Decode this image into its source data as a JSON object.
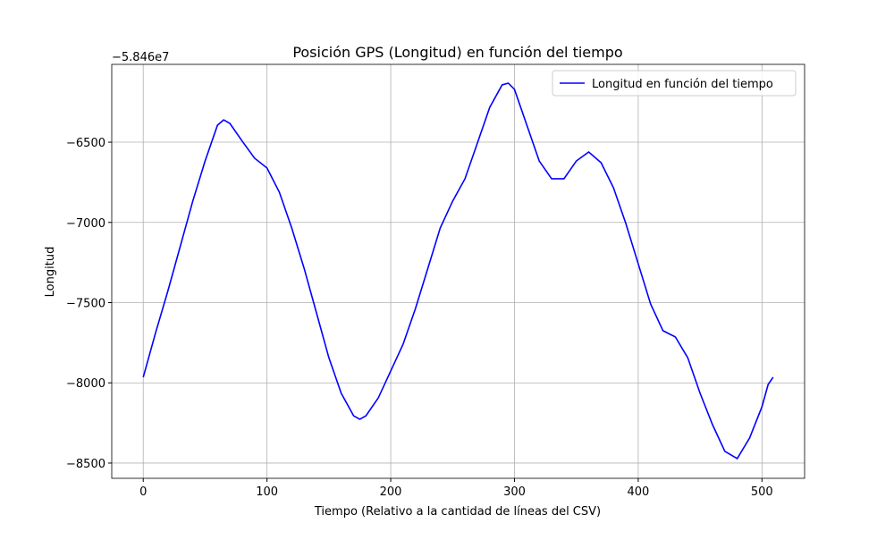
{
  "chart_data": {
    "type": "line",
    "title": "Posición GPS (Longitud) en función del tiempo",
    "x_label": "Tiempo (Relativo a la cantidad de líneas del CSV)",
    "y_label": "Longitud",
    "y_offset_label": "−5.846e7",
    "x": [
      0,
      10,
      20,
      30,
      40,
      50,
      60,
      65,
      70,
      80,
      90,
      100,
      110,
      120,
      130,
      140,
      150,
      160,
      170,
      175,
      180,
      190,
      200,
      210,
      220,
      230,
      240,
      250,
      260,
      270,
      280,
      290,
      295,
      300,
      310,
      320,
      330,
      340,
      350,
      360,
      370,
      380,
      390,
      400,
      410,
      420,
      430,
      440,
      450,
      460,
      470,
      480,
      490,
      500,
      505,
      509
    ],
    "series": [
      {
        "name": "Longitud en función del tiempo",
        "color": "#0000ff",
        "values": [
          -7965,
          -7687,
          -7425,
          -7147,
          -6868,
          -6617,
          -6394,
          -6361,
          -6383,
          -6494,
          -6600,
          -6661,
          -6812,
          -7035,
          -7286,
          -7564,
          -7843,
          -8065,
          -8205,
          -8227,
          -8205,
          -8093,
          -7926,
          -7759,
          -7536,
          -7286,
          -7035,
          -6868,
          -6728,
          -6506,
          -6283,
          -6143,
          -6132,
          -6171,
          -6394,
          -6617,
          -6728,
          -6728,
          -6617,
          -6561,
          -6628,
          -6784,
          -7007,
          -7258,
          -7508,
          -7675,
          -7714,
          -7843,
          -8065,
          -8260,
          -8427,
          -8472,
          -8344,
          -8149,
          -8010,
          -7965
        ]
      }
    ],
    "xlim": [
      -25.45,
      534.45
    ],
    "ylim": [
      -8595,
      -6015
    ],
    "xticks": [
      0,
      100,
      200,
      300,
      400,
      500
    ],
    "yticks": [
      {
        "value": -8500,
        "label": "−8500"
      },
      {
        "value": -8000,
        "label": "−8000"
      },
      {
        "value": -7500,
        "label": "−7500"
      },
      {
        "value": -7000,
        "label": "−7000"
      },
      {
        "value": -6500,
        "label": "−6500"
      }
    ],
    "grid": true,
    "legend": "upper right"
  }
}
